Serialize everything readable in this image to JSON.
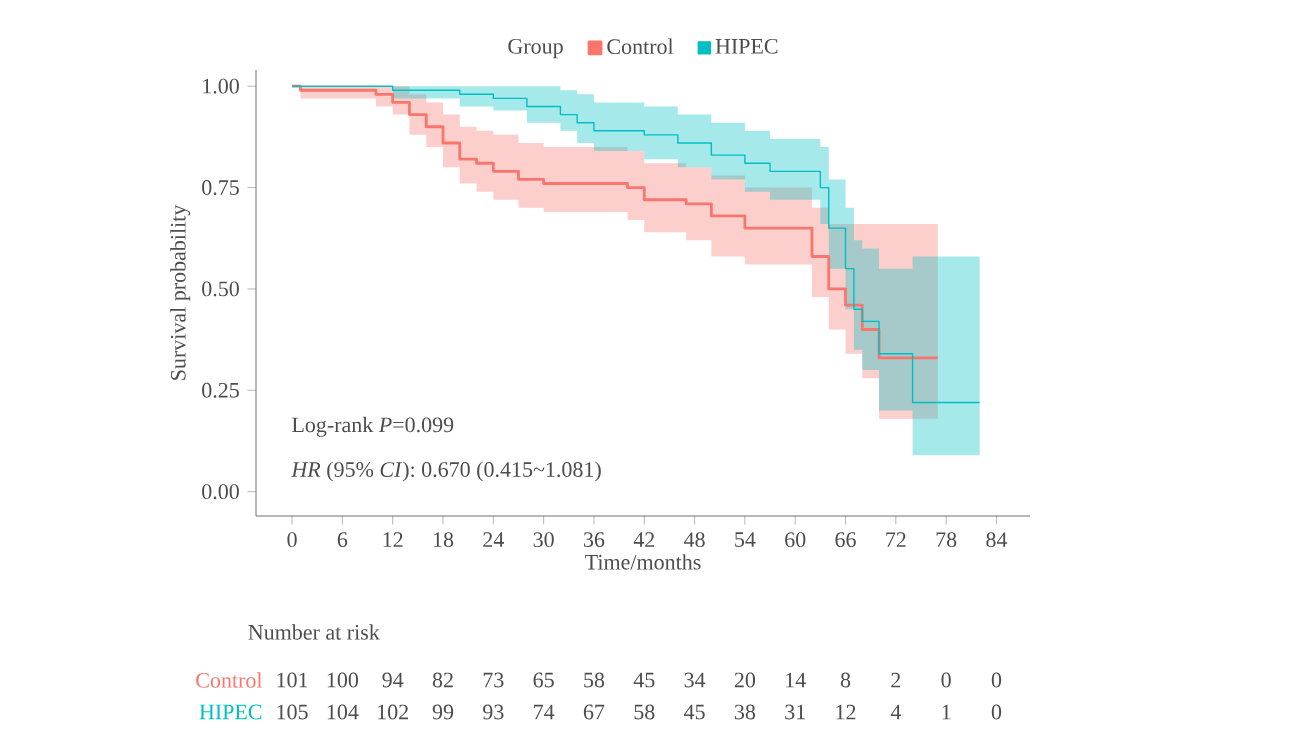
{
  "chart_data": {
    "type": "step",
    "legend_title": "Group",
    "xlabel": "Time/months",
    "ylabel": "Survival probability",
    "xlim": [
      -4.3,
      88
    ],
    "ylim": [
      -0.06,
      1.04
    ],
    "xticks": [
      0,
      6,
      12,
      18,
      24,
      30,
      36,
      42,
      48,
      54,
      60,
      66,
      72,
      78,
      84
    ],
    "yticks": [
      {
        "value": 0,
        "label": "0.00"
      },
      {
        "value": 0.25,
        "label": "0.25"
      },
      {
        "value": 0.5,
        "label": "0.50"
      },
      {
        "value": 0.75,
        "label": "0.75"
      },
      {
        "value": 1,
        "label": "1.00"
      }
    ],
    "legend": "top",
    "grid": false,
    "series": [
      {
        "name": "Control",
        "color": "#f8766d",
        "x": [
          0,
          1,
          10,
          12,
          14,
          16,
          18,
          20,
          22,
          24,
          27,
          30,
          40,
          42,
          47,
          50,
          54,
          61,
          62,
          64,
          66,
          68,
          70,
          77
        ],
        "values": [
          1.0,
          0.99,
          0.98,
          0.96,
          0.93,
          0.9,
          0.86,
          0.82,
          0.81,
          0.79,
          0.77,
          0.76,
          0.75,
          0.72,
          0.71,
          0.68,
          0.65,
          0.65,
          0.58,
          0.5,
          0.46,
          0.4,
          0.33,
          0.33
        ],
        "lower": [
          1.0,
          0.97,
          0.95,
          0.93,
          0.88,
          0.85,
          0.8,
          0.76,
          0.74,
          0.72,
          0.7,
          0.69,
          0.67,
          0.64,
          0.62,
          0.58,
          0.56,
          0.56,
          0.48,
          0.4,
          0.34,
          0.28,
          0.18,
          0.18
        ],
        "upper": [
          1.0,
          1.0,
          1.0,
          1.0,
          0.98,
          0.96,
          0.93,
          0.9,
          0.89,
          0.88,
          0.86,
          0.85,
          0.84,
          0.81,
          0.8,
          0.78,
          0.75,
          0.75,
          0.7,
          0.66,
          0.66,
          0.66,
          0.66,
          0.66
        ]
      },
      {
        "name": "HIPEC",
        "color": "#00bfc4",
        "x": [
          0,
          12,
          20,
          24,
          28,
          32,
          34,
          36,
          42,
          46,
          50,
          54,
          57,
          62,
          63,
          64,
          66,
          67,
          68,
          70,
          74,
          82
        ],
        "values": [
          1.0,
          0.99,
          0.98,
          0.97,
          0.95,
          0.93,
          0.91,
          0.89,
          0.88,
          0.86,
          0.83,
          0.81,
          0.79,
          0.79,
          0.75,
          0.65,
          0.55,
          0.45,
          0.42,
          0.34,
          0.22,
          0.22
        ],
        "lower": [
          1.0,
          0.97,
          0.95,
          0.94,
          0.91,
          0.89,
          0.86,
          0.84,
          0.82,
          0.8,
          0.77,
          0.74,
          0.72,
          0.72,
          0.66,
          0.55,
          0.45,
          0.35,
          0.3,
          0.2,
          0.09,
          0.09
        ],
        "upper": [
          1.0,
          1.0,
          1.0,
          1.0,
          1.0,
          0.99,
          0.98,
          0.96,
          0.95,
          0.93,
          0.91,
          0.89,
          0.87,
          0.87,
          0.85,
          0.77,
          0.7,
          0.62,
          0.6,
          0.55,
          0.58,
          0.58
        ]
      }
    ],
    "annotations": [
      "Log-rank *P*=0.099",
      "*HR* (95% *CI*): 0.670 (0.415~1.081)",
      "Number at risk",
      "Control",
      "101",
      "100",
      "94",
      "82",
      "73",
      "65",
      "58",
      "45",
      "34",
      "20",
      "14",
      "8",
      "2",
      "0",
      "0",
      "HIPEC",
      "105",
      "104",
      "102",
      "99",
      "93",
      "74",
      "67",
      "58",
      "45",
      "38",
      "31",
      "12",
      "4",
      "1",
      "0"
    ]
  }
}
